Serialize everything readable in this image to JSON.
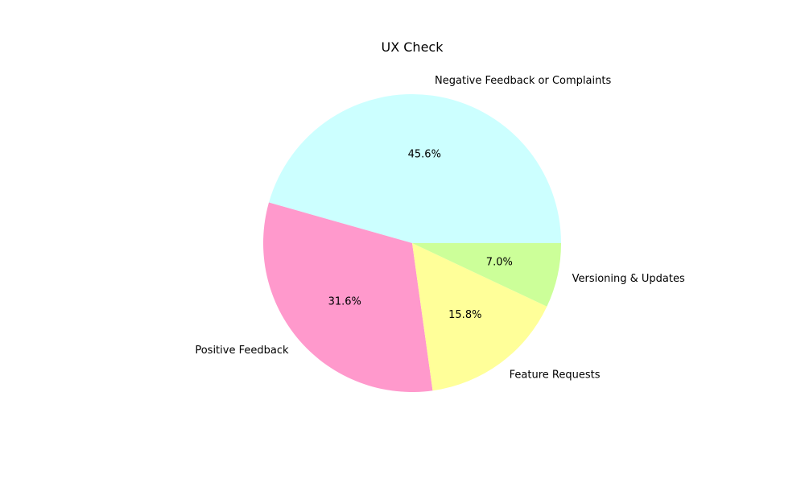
{
  "chart_data": {
    "type": "pie",
    "title": "UX Check",
    "start_angle_deg": 0,
    "direction": "counterclockwise",
    "autopct_format": "%.1f%%",
    "legend": "none",
    "slices": [
      {
        "label": "Negative Feedback or Complaints",
        "percent": 45.6,
        "color": "#ccffff"
      },
      {
        "label": "Positive Feedback",
        "percent": 31.6,
        "color": "#ff99cc"
      },
      {
        "label": "Feature Requests",
        "percent": 15.8,
        "color": "#ffff99"
      },
      {
        "label": "Versioning & Updates",
        "percent": 7.0,
        "color": "#ccff99"
      }
    ]
  }
}
